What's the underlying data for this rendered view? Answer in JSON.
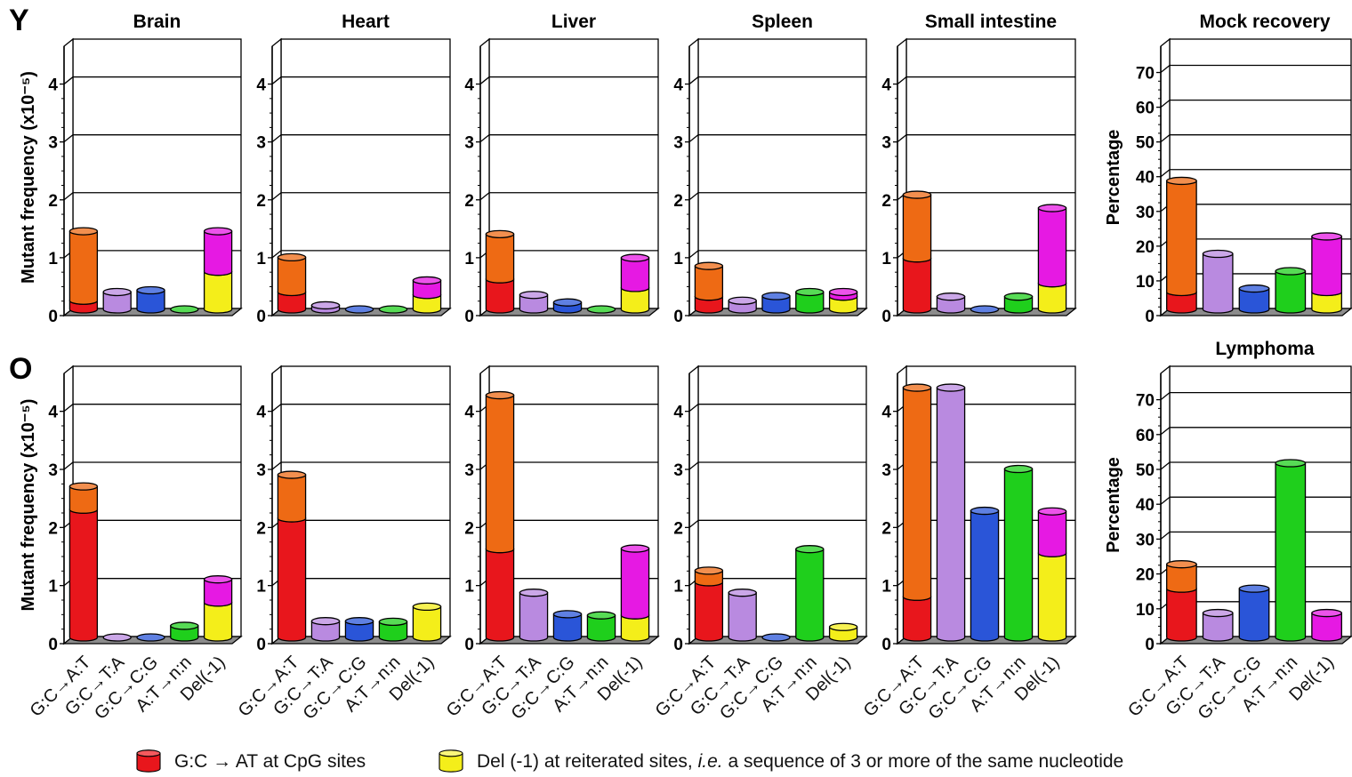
{
  "figure": {
    "row_labels": [
      "Y",
      "O"
    ],
    "category_labels": [
      "G:C→A:T",
      "G:C→T:A",
      "G:C→C:G",
      "A:T→n:n",
      "Del(-1)"
    ],
    "segment_colors": {
      "red": "#e8161c",
      "orange": "#ee6a14",
      "lavender": "#b98ae0",
      "blue": "#2a55d8",
      "green": "#1fcf1c",
      "magenta": "#e619e3",
      "yellow": "#f4ee1a"
    }
  },
  "legend": {
    "item1_label": "G:C → AT at CpG sites",
    "item1_color": "#e8161c",
    "item2_prefix": "Del (-1) at reiterated sites, ",
    "item2_ie": "i.e.",
    "item2_suffix": " a sequence of 3 or more of the same nucleotide",
    "item2_color": "#f4ee1a"
  },
  "chart_data": [
    {
      "type": "bar",
      "row": "Y",
      "title": "Brain",
      "ylabel": "Mutant frequency (x10⁻⁵)",
      "ylim": [
        0,
        4.5
      ],
      "yticks": [
        0,
        1,
        2,
        3,
        4
      ],
      "categories": [
        "G:C→A:T",
        "G:C→T:A",
        "G:C→C:G",
        "A:T→n:n",
        "Del(-1)"
      ],
      "bars": [
        [
          0.15,
          1.2
        ],
        [
          0.3
        ],
        [
          0.33
        ],
        [
          0.0
        ],
        [
          0.65,
          0.7
        ]
      ],
      "colors": [
        [
          "red",
          "orange"
        ],
        [
          "lavender"
        ],
        [
          "blue"
        ],
        [
          "green"
        ],
        [
          "yellow",
          "magenta"
        ]
      ]
    },
    {
      "type": "bar",
      "row": "Y",
      "title": "Heart",
      "ylabel": "",
      "ylim": [
        0,
        4.5
      ],
      "yticks": [
        0,
        1,
        2,
        3,
        4
      ],
      "categories": [
        "G:C→A:T",
        "G:C→T:A",
        "G:C→C:G",
        "A:T→n:n",
        "Del(-1)"
      ],
      "bars": [
        [
          0.3,
          0.6
        ],
        [
          0.07
        ],
        [
          0.0
        ],
        [
          0.0
        ],
        [
          0.25,
          0.25
        ]
      ],
      "colors": [
        [
          "red",
          "orange"
        ],
        [
          "lavender"
        ],
        [
          "blue"
        ],
        [
          "green"
        ],
        [
          "yellow",
          "magenta"
        ]
      ]
    },
    {
      "type": "bar",
      "row": "Y",
      "title": "Liver",
      "ylabel": "",
      "ylim": [
        0,
        4.5
      ],
      "yticks": [
        0,
        1,
        2,
        3,
        4
      ],
      "categories": [
        "G:C→A:T",
        "G:C→T:A",
        "G:C→C:G",
        "A:T→n:n",
        "Del(-1)"
      ],
      "bars": [
        [
          0.52,
          0.78
        ],
        [
          0.25
        ],
        [
          0.12
        ],
        [
          0.0
        ],
        [
          0.37,
          0.52
        ]
      ],
      "colors": [
        [
          "red",
          "orange"
        ],
        [
          "lavender"
        ],
        [
          "blue"
        ],
        [
          "green"
        ],
        [
          "yellow",
          "magenta"
        ]
      ]
    },
    {
      "type": "bar",
      "row": "Y",
      "title": "Spleen",
      "ylabel": "",
      "ylim": [
        0,
        4.5
      ],
      "yticks": [
        0,
        1,
        2,
        3,
        4
      ],
      "categories": [
        "G:C→A:T",
        "G:C→T:A",
        "G:C→C:G",
        "A:T→n:n",
        "Del(-1)"
      ],
      "bars": [
        [
          0.22,
          0.53
        ],
        [
          0.15
        ],
        [
          0.23
        ],
        [
          0.3
        ],
        [
          0.22,
          0.08
        ]
      ],
      "colors": [
        [
          "red",
          "orange"
        ],
        [
          "lavender"
        ],
        [
          "blue"
        ],
        [
          "green"
        ],
        [
          "yellow",
          "magenta"
        ]
      ]
    },
    {
      "type": "bar",
      "row": "Y",
      "title": "Small intestine",
      "ylabel": "",
      "ylim": [
        0,
        4.5
      ],
      "yticks": [
        0,
        1,
        2,
        3,
        4
      ],
      "categories": [
        "G:C→A:T",
        "G:C→T:A",
        "G:C→C:G",
        "A:T→n:n",
        "Del(-1)"
      ],
      "bars": [
        [
          0.88,
          1.1
        ],
        [
          0.22
        ],
        [
          0.0
        ],
        [
          0.22
        ],
        [
          0.45,
          1.3
        ]
      ],
      "colors": [
        [
          "red",
          "orange"
        ],
        [
          "lavender"
        ],
        [
          "blue"
        ],
        [
          "green"
        ],
        [
          "yellow",
          "magenta"
        ]
      ]
    },
    {
      "type": "bar",
      "row": "Y",
      "title": "Mock recovery",
      "ylabel": "Percentage",
      "ylim": [
        0,
        75
      ],
      "yticks": [
        0,
        10,
        20,
        30,
        40,
        50,
        60,
        70
      ],
      "categories": [
        "G:C→A:T",
        "G:C→T:A",
        "G:C→C:G",
        "A:T→n:n",
        "Del(-1)"
      ],
      "bars": [
        [
          5,
          32
        ],
        [
          16
        ],
        [
          6
        ],
        [
          11
        ],
        [
          5,
          16
        ]
      ],
      "colors": [
        [
          "red",
          "orange"
        ],
        [
          "lavender"
        ],
        [
          "blue"
        ],
        [
          "green"
        ],
        [
          "yellow",
          "magenta"
        ]
      ]
    },
    {
      "type": "bar",
      "row": "O",
      "title": "",
      "ylabel": "Mutant frequency (x10⁻⁵)",
      "ylim": [
        0,
        4.5
      ],
      "yticks": [
        0,
        1,
        2,
        3,
        4
      ],
      "categories": [
        "G:C→A:T",
        "G:C→T:A",
        "G:C→C:G",
        "A:T→n:n",
        "Del(-1)"
      ],
      "bars": [
        [
          2.2,
          0.4
        ],
        [
          0.0
        ],
        [
          0.0
        ],
        [
          0.2
        ],
        [
          0.6,
          0.4
        ]
      ],
      "colors": [
        [
          "red",
          "orange"
        ],
        [
          "lavender"
        ],
        [
          "blue"
        ],
        [
          "green"
        ],
        [
          "yellow",
          "magenta"
        ]
      ]
    },
    {
      "type": "bar",
      "row": "O",
      "title": "",
      "ylabel": "",
      "ylim": [
        0,
        4.5
      ],
      "yticks": [
        0,
        1,
        2,
        3,
        4
      ],
      "categories": [
        "G:C→A:T",
        "G:C→T:A",
        "G:C→C:G",
        "A:T→n:n",
        "Del(-1)"
      ],
      "bars": [
        [
          2.05,
          0.75
        ],
        [
          0.28
        ],
        [
          0.28
        ],
        [
          0.27
        ],
        [
          0.53
        ]
      ],
      "colors": [
        [
          "red",
          "orange"
        ],
        [
          "lavender"
        ],
        [
          "blue"
        ],
        [
          "green"
        ],
        [
          "yellow"
        ]
      ]
    },
    {
      "type": "bar",
      "row": "O",
      "title": "",
      "ylabel": "",
      "ylim": [
        0,
        4.5
      ],
      "yticks": [
        0,
        1,
        2,
        3,
        4
      ],
      "categories": [
        "G:C→A:T",
        "G:C→T:A",
        "G:C→C:G",
        "A:T→n:n",
        "Del(-1)"
      ],
      "bars": [
        [
          1.52,
          2.65
        ],
        [
          0.77
        ],
        [
          0.4
        ],
        [
          0.38
        ],
        [
          0.38,
          1.15
        ]
      ],
      "colors": [
        [
          "red",
          "orange"
        ],
        [
          "lavender"
        ],
        [
          "blue"
        ],
        [
          "green"
        ],
        [
          "yellow",
          "magenta"
        ]
      ]
    },
    {
      "type": "bar",
      "row": "O",
      "title": "",
      "ylabel": "",
      "ylim": [
        0,
        4.5
      ],
      "yticks": [
        0,
        1,
        2,
        3,
        4
      ],
      "categories": [
        "G:C→A:T",
        "G:C→T:A",
        "G:C→C:G",
        "A:T→n:n",
        "Del(-1)"
      ],
      "bars": [
        [
          0.95,
          0.2
        ],
        [
          0.77
        ],
        [
          0.0
        ],
        [
          1.52
        ],
        [
          0.18
        ]
      ],
      "colors": [
        [
          "red",
          "orange"
        ],
        [
          "lavender"
        ],
        [
          "blue"
        ],
        [
          "green"
        ],
        [
          "yellow"
        ]
      ]
    },
    {
      "type": "bar",
      "row": "O",
      "title": "",
      "ylabel": "",
      "ylim": [
        0,
        4.5
      ],
      "yticks": [
        0,
        1,
        2,
        3,
        4
      ],
      "categories": [
        "G:C→A:T",
        "G:C→T:A",
        "G:C→C:G",
        "A:T→n:n",
        "Del(-1)"
      ],
      "bars": [
        [
          0.7,
          3.6
        ],
        [
          4.3
        ],
        [
          2.18
        ],
        [
          2.9
        ],
        [
          1.45,
          0.72
        ]
      ],
      "colors": [
        [
          "red",
          "orange"
        ],
        [
          "lavender"
        ],
        [
          "blue"
        ],
        [
          "green"
        ],
        [
          "yellow",
          "magenta"
        ]
      ]
    },
    {
      "type": "bar",
      "row": "O",
      "title": "Lymphoma",
      "ylabel": "Percentage",
      "ylim": [
        0,
        75
      ],
      "yticks": [
        0,
        10,
        20,
        30,
        40,
        50,
        60,
        70
      ],
      "categories": [
        "G:C→A:T",
        "G:C→T:A",
        "G:C→C:G",
        "A:T→n:n",
        "Del(-1)"
      ],
      "bars": [
        [
          14,
          7
        ],
        [
          7
        ],
        [
          14
        ],
        [
          50
        ],
        [
          7
        ]
      ],
      "colors": [
        [
          "red",
          "orange"
        ],
        [
          "lavender"
        ],
        [
          "blue"
        ],
        [
          "green"
        ],
        [
          "magenta"
        ]
      ]
    }
  ]
}
